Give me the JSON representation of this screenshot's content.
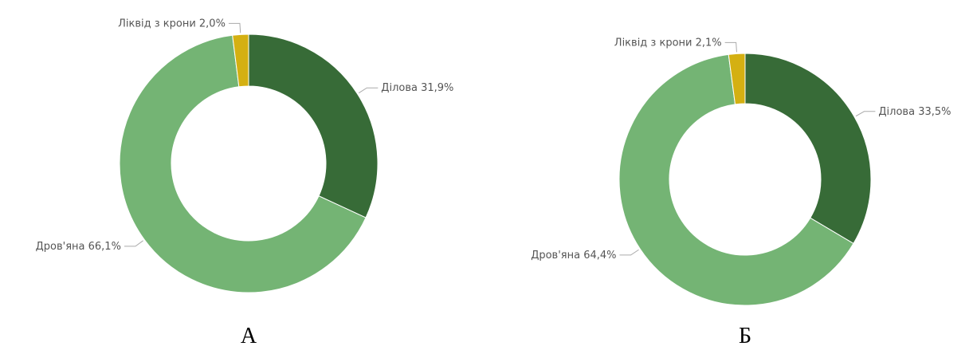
{
  "chart_data": [
    {
      "type": "donut",
      "title": "А",
      "categories": [
        "Ділова",
        "Дров'яна",
        "Ліквід з крони"
      ],
      "values": [
        31.9,
        66.1,
        2.0
      ],
      "value_labels": [
        "31,9%",
        "66,1%",
        "2,0%"
      ],
      "colors": [
        "#376b37",
        "#74b474",
        "#d4b012"
      ]
    },
    {
      "type": "donut",
      "title": "Б",
      "categories": [
        "Ділова",
        "Дров'яна",
        "Ліквід з крони"
      ],
      "values": [
        33.5,
        64.4,
        2.1
      ],
      "value_labels": [
        "33,5%",
        "64,4%",
        "2,1%"
      ],
      "colors": [
        "#376b37",
        "#74b474",
        "#d4b012"
      ]
    }
  ]
}
